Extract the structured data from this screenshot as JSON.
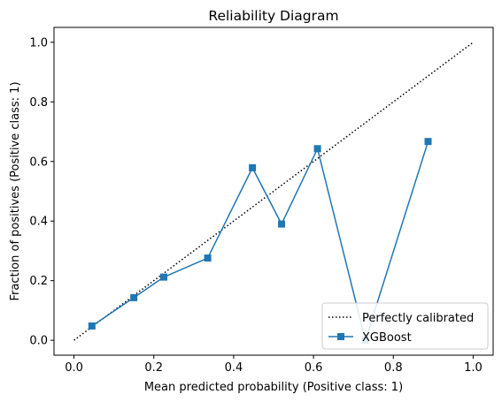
{
  "chart_data": {
    "type": "line",
    "title": "Reliability Diagram",
    "xlabel": "Mean predicted probability (Positive class: 1)",
    "ylabel": "Fraction of positives (Positive class: 1)",
    "xlim": [
      -0.05,
      1.05
    ],
    "ylim": [
      -0.05,
      1.05
    ],
    "xticks": [
      0.0,
      0.2,
      0.4,
      0.6,
      0.8,
      1.0
    ],
    "yticks": [
      0.0,
      0.2,
      0.4,
      0.6,
      0.8,
      1.0
    ],
    "xtick_labels": [
      "0.0",
      "0.2",
      "0.4",
      "0.6",
      "0.8",
      "1.0"
    ],
    "ytick_labels": [
      "0.0",
      "0.2",
      "0.4",
      "0.6",
      "0.8",
      "1.0"
    ],
    "grid": false,
    "legend_position": "lower-right",
    "series": [
      {
        "name": "Perfectly calibrated",
        "style": "dotted",
        "color": "#000000",
        "x": [
          0.0,
          1.0
        ],
        "y": [
          0.0,
          1.0
        ]
      },
      {
        "name": "XGBoost",
        "style": "solid-square-markers",
        "color": "#1f77b4",
        "x": [
          0.045,
          0.15,
          0.225,
          0.335,
          0.447,
          0.52,
          0.61,
          0.73,
          0.887
        ],
        "y": [
          0.048,
          0.143,
          0.212,
          0.276,
          0.579,
          0.39,
          0.643,
          0.0,
          0.667
        ]
      }
    ]
  }
}
